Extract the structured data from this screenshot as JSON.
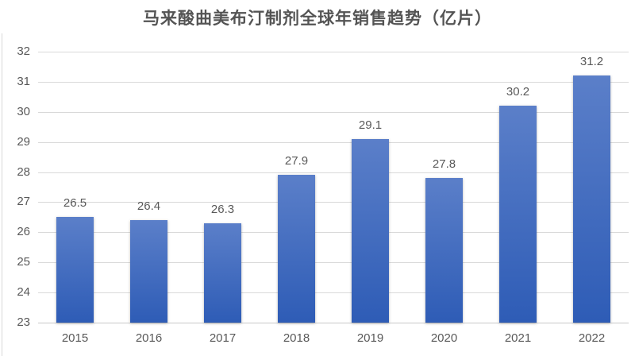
{
  "chart_data": {
    "type": "bar",
    "title": "马来酸曲美布汀制剂全球年销售趋势（亿片）",
    "categories": [
      "2015",
      "2016",
      "2017",
      "2018",
      "2019",
      "2020",
      "2021",
      "2022"
    ],
    "values": [
      26.5,
      26.4,
      26.3,
      27.9,
      29.1,
      27.8,
      30.2,
      31.2
    ],
    "data_labels": [
      "26.5",
      "26.4",
      "26.3",
      "27.9",
      "29.1",
      "27.8",
      "30.2",
      "31.2"
    ],
    "xlabel": "",
    "ylabel": "",
    "ylim": [
      23,
      32
    ],
    "ytick_step": 1,
    "ytick_labels": [
      "23",
      "24",
      "25",
      "26",
      "27",
      "28",
      "29",
      "30",
      "31",
      "32"
    ],
    "grid": true,
    "legend_position": "none",
    "colors": {
      "bar_gradient_top": "#5b7fc9",
      "bar_gradient_bottom": "#2e5cb6",
      "gridline": "#d9d9d9",
      "baseline": "#c9c9c9",
      "tick_text": "#595959",
      "data_label_text": "#595959",
      "title_text": "#545454",
      "background": "#ffffff",
      "left_edge_line": "#d9d9d9"
    }
  }
}
